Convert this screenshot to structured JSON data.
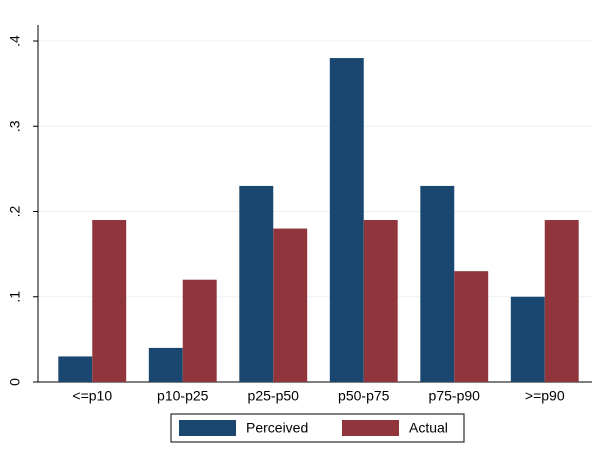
{
  "chart_data": {
    "type": "bar",
    "categories": [
      "<=p10",
      "p10-p25",
      "p25-p50",
      "p50-p75",
      "p75-p90",
      ">=p90"
    ],
    "series": [
      {
        "name": "Perceived",
        "color": "#1a476f",
        "values": [
          0.03,
          0.04,
          0.23,
          0.38,
          0.23,
          0.1
        ]
      },
      {
        "name": "Actual",
        "color": "#90353b",
        "values": [
          0.19,
          0.12,
          0.18,
          0.19,
          0.13,
          0.19
        ]
      }
    ],
    "ylim": [
      0,
      0.4
    ],
    "yticks": [
      0,
      {
        "value": 0.1,
        "label": ".1"
      },
      {
        "value": 0.2,
        "label": ".2"
      },
      {
        "value": 0.3,
        "label": ".3"
      },
      {
        "value": 0.4,
        "label": ".4"
      }
    ],
    "grid": true,
    "legend": "bottom"
  }
}
